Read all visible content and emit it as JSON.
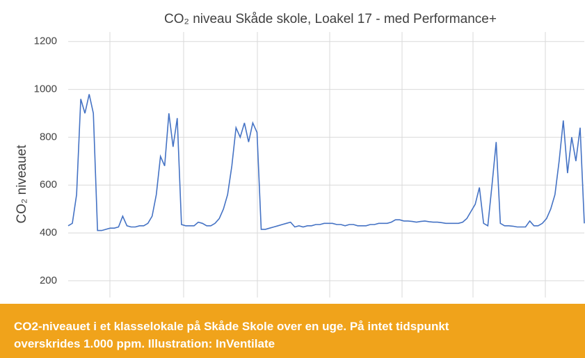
{
  "chart_data": {
    "type": "line",
    "title": "CO₂ niveau Skåde skole, Loakel 17 - med Performance+",
    "y_label": "CO₂ niveauet",
    "ylim": [
      130,
      1240
    ],
    "yticks": [
      200,
      400,
      600,
      800,
      1000,
      1200
    ],
    "grid": true,
    "color": "#4472c4",
    "values": [
      430,
      440,
      560,
      960,
      900,
      980,
      900,
      410,
      410,
      415,
      420,
      420,
      425,
      470,
      430,
      425,
      425,
      430,
      430,
      440,
      470,
      560,
      720,
      680,
      900,
      760,
      880,
      435,
      430,
      430,
      430,
      445,
      440,
      430,
      430,
      440,
      460,
      500,
      560,
      680,
      840,
      800,
      860,
      780,
      860,
      820,
      415,
      415,
      420,
      425,
      430,
      435,
      440,
      445,
      425,
      430,
      425,
      430,
      430,
      435,
      435,
      440,
      440,
      440,
      435,
      435,
      430,
      435,
      435,
      430,
      430,
      430,
      435,
      435,
      440,
      440,
      440,
      445,
      455,
      455,
      450,
      450,
      448,
      445,
      448,
      450,
      447,
      445,
      445,
      443,
      440,
      440,
      440,
      440,
      445,
      460,
      490,
      520,
      590,
      440,
      430,
      600,
      780,
      440,
      430,
      430,
      428,
      425,
      425,
      425,
      450,
      430,
      430,
      440,
      460,
      500,
      560,
      700,
      870,
      650,
      800,
      700,
      840,
      440
    ]
  },
  "caption": {
    "lines": [
      "CO2-niveauet i et klasselokale på Skåde Skole over en uge. På intet tidspunkt",
      "overskrides 1.000 ppm. Illustration: InVentilate"
    ]
  }
}
